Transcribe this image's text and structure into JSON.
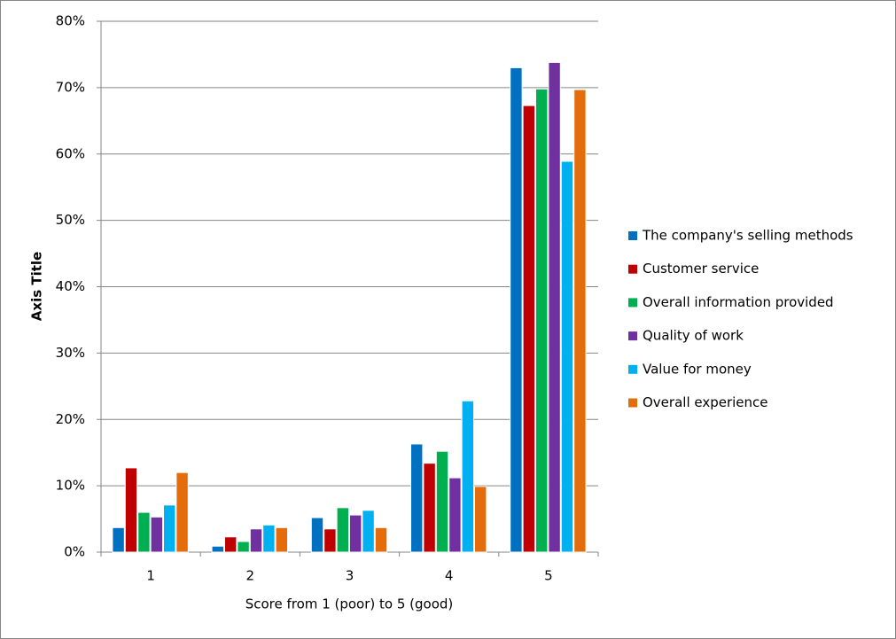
{
  "chart_data": {
    "type": "bar",
    "y_axis_title": "Axis Title",
    "x_axis_title": "Score from 1 (poor) to 5 (good)",
    "categories": [
      "1",
      "2",
      "3",
      "4",
      "5"
    ],
    "series": [
      {
        "name": "The company's selling methods",
        "color": "#0070c0",
        "values": [
          3.7,
          0.9,
          5.2,
          16.3,
          73.0
        ]
      },
      {
        "name": "Customer service",
        "color": "#c00000",
        "values": [
          12.7,
          2.3,
          3.5,
          13.4,
          67.3
        ]
      },
      {
        "name": "Overall information provided",
        "color": "#00b050",
        "values": [
          6.0,
          1.6,
          6.7,
          15.2,
          69.8
        ]
      },
      {
        "name": "Quality of work",
        "color": "#7030a0",
        "values": [
          5.3,
          3.5,
          5.6,
          11.2,
          73.8
        ]
      },
      {
        "name": "Value for money",
        "color": "#00b0f0",
        "values": [
          7.1,
          4.1,
          6.3,
          22.8,
          58.9
        ]
      },
      {
        "name": "Overall experience",
        "color": "#e46c0a",
        "values": [
          12.0,
          3.7,
          3.7,
          9.9,
          69.7
        ]
      }
    ],
    "ylim": [
      0,
      80
    ],
    "yticks": [
      {
        "value": 0,
        "label": "0%"
      },
      {
        "value": 10,
        "label": "10%"
      },
      {
        "value": 20,
        "label": "20%"
      },
      {
        "value": 30,
        "label": "30%"
      },
      {
        "value": 40,
        "label": "40%"
      },
      {
        "value": 50,
        "label": "50%"
      },
      {
        "value": 60,
        "label": "60%"
      },
      {
        "value": 70,
        "label": "70%"
      },
      {
        "value": 80,
        "label": "80%"
      }
    ],
    "grid": true,
    "legend": "right"
  }
}
